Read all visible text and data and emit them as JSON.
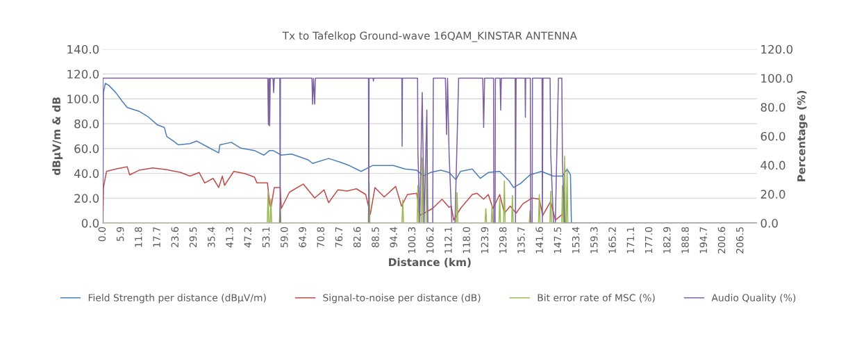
{
  "chart_data": {
    "type": "line",
    "title": "Tx to Tafelkop Ground-wave 16QAM_KINSTAR ANTENNA",
    "xlabel": "Distance (km)",
    "ylabel": "dBµV/m & dB",
    "y2label": "Percentage (%)",
    "xlim": [
      0,
      211.7
    ],
    "xticks": [
      {
        "value": 0,
        "label": "0.0"
      },
      5.9,
      11.8,
      17.7,
      23.6,
      29.5,
      35.4,
      41.3,
      47.2,
      53.1,
      {
        "value": 59,
        "label": "59.0"
      },
      64.9,
      70.8,
      76.7,
      82.6,
      88.5,
      94.4,
      100.3,
      106.2,
      112.1,
      {
        "value": 118,
        "label": "118.0"
      },
      123.9,
      129.8,
      135.7,
      141.6,
      147.5,
      153.4,
      159.3,
      165.2,
      171.1,
      {
        "value": 177,
        "label": "177.0"
      },
      182.9,
      188.8,
      194.7,
      200.6,
      206.5
    ],
    "ylim": [
      0,
      140
    ],
    "yticks": [
      {
        "value": 0,
        "label": "0.0"
      },
      {
        "value": 20,
        "label": "20.0"
      },
      {
        "value": 40,
        "label": "40.0"
      },
      {
        "value": 60,
        "label": "60.0"
      },
      {
        "value": 80,
        "label": "80.0"
      },
      {
        "value": 100,
        "label": "100.0"
      },
      {
        "value": 120,
        "label": "120.0"
      },
      {
        "value": 140,
        "label": "140.0"
      }
    ],
    "y2lim": [
      0,
      120
    ],
    "y2ticks": [
      {
        "value": 0,
        "label": "0.0"
      },
      {
        "value": 20,
        "label": "20.0"
      },
      {
        "value": 40,
        "label": "40.0"
      },
      {
        "value": 60,
        "label": "60.0"
      },
      {
        "value": 80,
        "label": "80.0"
      },
      {
        "value": 100,
        "label": "100.0"
      },
      {
        "value": 120,
        "label": "120.0"
      }
    ],
    "grid": "y",
    "legend": "bottom",
    "series": [
      {
        "name": "Field Strength per distance (dBµV/m)",
        "color": "#4a7ebb",
        "x": [
          0,
          0.2,
          0.8,
          2.0,
          4.2,
          6.4,
          7.9,
          11.7,
          14.7,
          17.7,
          19.9,
          20.7,
          22.9,
          24.4,
          28.2,
          30.4,
          33.4,
          37.5,
          37.9,
          41.6,
          44.7,
          49.1,
          52.1,
          54,
          55.1,
          57.8,
          61.1,
          66.4,
          67.9,
          73.1,
          76.9,
          79.8,
          83.6,
          87.3,
          94.1,
          97.8,
          101.6,
          103.8,
          106.1,
          109.4,
          112.1,
          114.3,
          115.8,
          119.6,
          122.2,
          124.8,
          128.5,
          131.5,
          133,
          135.3,
          138.3,
          142,
          145.8,
          148.8,
          150.3,
          151.4,
          151.7,
          211.5
        ],
        "values": [
          0,
          105,
          112.5,
          110.7,
          105,
          97.6,
          93,
          90,
          85.5,
          79,
          77,
          69.6,
          66,
          63,
          64,
          66,
          62,
          56.5,
          63,
          65,
          60.3,
          58.4,
          54.7,
          58.4,
          58.4,
          54.7,
          55.6,
          51,
          48,
          52,
          49,
          46.3,
          41.6,
          46.3,
          46.3,
          43.5,
          42.5,
          38,
          40.7,
          42.5,
          40.7,
          35,
          41.6,
          43.5,
          36,
          40.7,
          41.6,
          34,
          28.6,
          32,
          38.8,
          41.6,
          37.8,
          37.8,
          43.5,
          38.8,
          0,
          0
        ]
      },
      {
        "name": "Signal-to-noise per distance (dB)",
        "color": "#be4b48",
        "x": [
          0,
          0.2,
          1.2,
          4.2,
          7.9,
          8.7,
          11.7,
          16.2,
          20.7,
          25.2,
          28.2,
          31.2,
          33,
          35.7,
          37.5,
          38.7,
          39.4,
          42.4,
          46.1,
          49.1,
          49.9,
          53.3,
          54,
          54.4,
          55.5,
          57.4,
          57.8,
          60.4,
          64.9,
          68.6,
          71.6,
          73.1,
          76.1,
          79.1,
          82.1,
          85.1,
          86.6,
          88.1,
          91.1,
          94.8,
          96.7,
          98.6,
          101.6,
          102.7,
          106.8,
          109.8,
          112.1,
          112.8,
          113.6,
          115.8,
          119.6,
          121.1,
          123.3,
          124.8,
          126.3,
          128.5,
          130,
          131.9,
          133.8,
          136,
          139,
          141.3,
          142.4,
          145,
          146.5,
          148.8,
          149.5
        ],
        "values": [
          0,
          28.6,
          41.6,
          43.5,
          45.3,
          38.8,
          42.5,
          44.4,
          43,
          40.7,
          37.8,
          40.7,
          32.3,
          36,
          28.6,
          37.8,
          30.4,
          41.6,
          39.8,
          37,
          32.3,
          32.3,
          15.5,
          11.8,
          28.6,
          28.6,
          11.8,
          24.8,
          31.4,
          20.2,
          26.7,
          16.4,
          26.7,
          25.8,
          27.6,
          23,
          7.1,
          28.6,
          21,
          29.5,
          13.6,
          23,
          24,
          6.2,
          11.8,
          19.2,
          12.7,
          13.6,
          2.4,
          11.8,
          23,
          24,
          19.2,
          23,
          11.8,
          23,
          8,
          13.6,
          8,
          15.5,
          20.2,
          19.2,
          6.2,
          17.4,
          2.4,
          7.1,
          1.5
        ]
      },
      {
        "name": "Bit error rate of MSC (%)",
        "color": "#98b954",
        "axis": "y2",
        "x": [
          0,
          53.25,
          53.5,
          53.75,
          54.15,
          54.4,
          54.65,
          57.15,
          57.4,
          57.65,
          85.95,
          86.2,
          86.45,
          96.85,
          97.1,
          97.35,
          101.75,
          102,
          102.25,
          103.15,
          103.4,
          103.65,
          104.65,
          104.9,
          105.15,
          114.45,
          114.7,
          114.95,
          123.75,
          124,
          124.25,
          125.75,
          126,
          126.25,
          128.25,
          128.5,
          128.75,
          129.75,
          130,
          130.25,
          132.35,
          132.6,
          132.85,
          138.05,
          138.3,
          138.55,
          141.05,
          141.3,
          141.55,
          144.75,
          145,
          145.25,
          148.55,
          148.8,
          149.05,
          149.25,
          149.5,
          149.75,
          150.05,
          150.3,
          150.55,
          211.5
        ],
        "values": [
          0,
          0,
          21.3,
          0,
          0,
          16.5,
          0,
          0,
          13.3,
          0,
          0,
          28.5,
          0,
          0,
          16,
          0,
          0,
          26,
          0,
          0,
          45,
          0,
          0,
          51,
          0,
          0,
          21,
          0,
          0,
          10,
          0,
          0,
          12,
          0,
          0,
          16.5,
          0,
          0,
          29,
          0,
          0,
          19,
          0,
          0,
          8.5,
          0,
          0,
          19.7,
          0,
          0,
          22,
          0,
          0,
          26,
          0,
          0,
          46,
          0,
          0,
          37,
          0,
          0
        ]
      },
      {
        "name": "Audio Quality (%)",
        "color": "#7d60a0",
        "axis": "y2",
        "x": [
          0,
          0.05,
          53.4,
          53.6,
          53.8,
          53.9,
          54,
          54.2,
          55.1,
          55.3,
          55.5,
          57.3,
          57.4,
          57.5,
          67.7,
          67.9,
          68.2,
          68.6,
          68.8,
          86,
          86.1,
          86.2,
          87.5,
          87.6,
          87.7,
          96.8,
          96.9,
          97,
          101.9,
          102,
          102.6,
          103.4,
          104,
          104.9,
          105.2,
          106.8,
          107,
          110.9,
          111.3,
          111.6,
          112.1,
          113,
          114,
          115.2,
          123,
          123.3,
          123.6,
          126.5,
          126.6,
          127,
          127.1,
          128.6,
          128.8,
          129,
          133.5,
          133.6,
          133.8,
          136.7,
          136.8,
          136.9,
          138.4,
          138.5,
          139,
          139.1,
          142.2,
          142.3,
          142.5,
          144.8,
          145,
          145.9,
          146.5,
          147.5,
          148.6,
          148.8,
          149.5,
          211.5
        ],
        "values": [
          0,
          100,
          100,
          67.8,
          100,
          100,
          67,
          100,
          100,
          90,
          100,
          100,
          0,
          100,
          100,
          82,
          100,
          82,
          100,
          100,
          0,
          100,
          100,
          98,
          100,
          100,
          53,
          100,
          100,
          50,
          0,
          90,
          0,
          78,
          0,
          0,
          100,
          100,
          61,
          100,
          48,
          0,
          0,
          100,
          100,
          66,
          100,
          100,
          0,
          0,
          100,
          100,
          78,
          100,
          100,
          0,
          100,
          100,
          73,
          100,
          100,
          0,
          0,
          100,
          100,
          0,
          100,
          100,
          48,
          0,
          0,
          100,
          100,
          42,
          0,
          0
        ]
      }
    ]
  }
}
